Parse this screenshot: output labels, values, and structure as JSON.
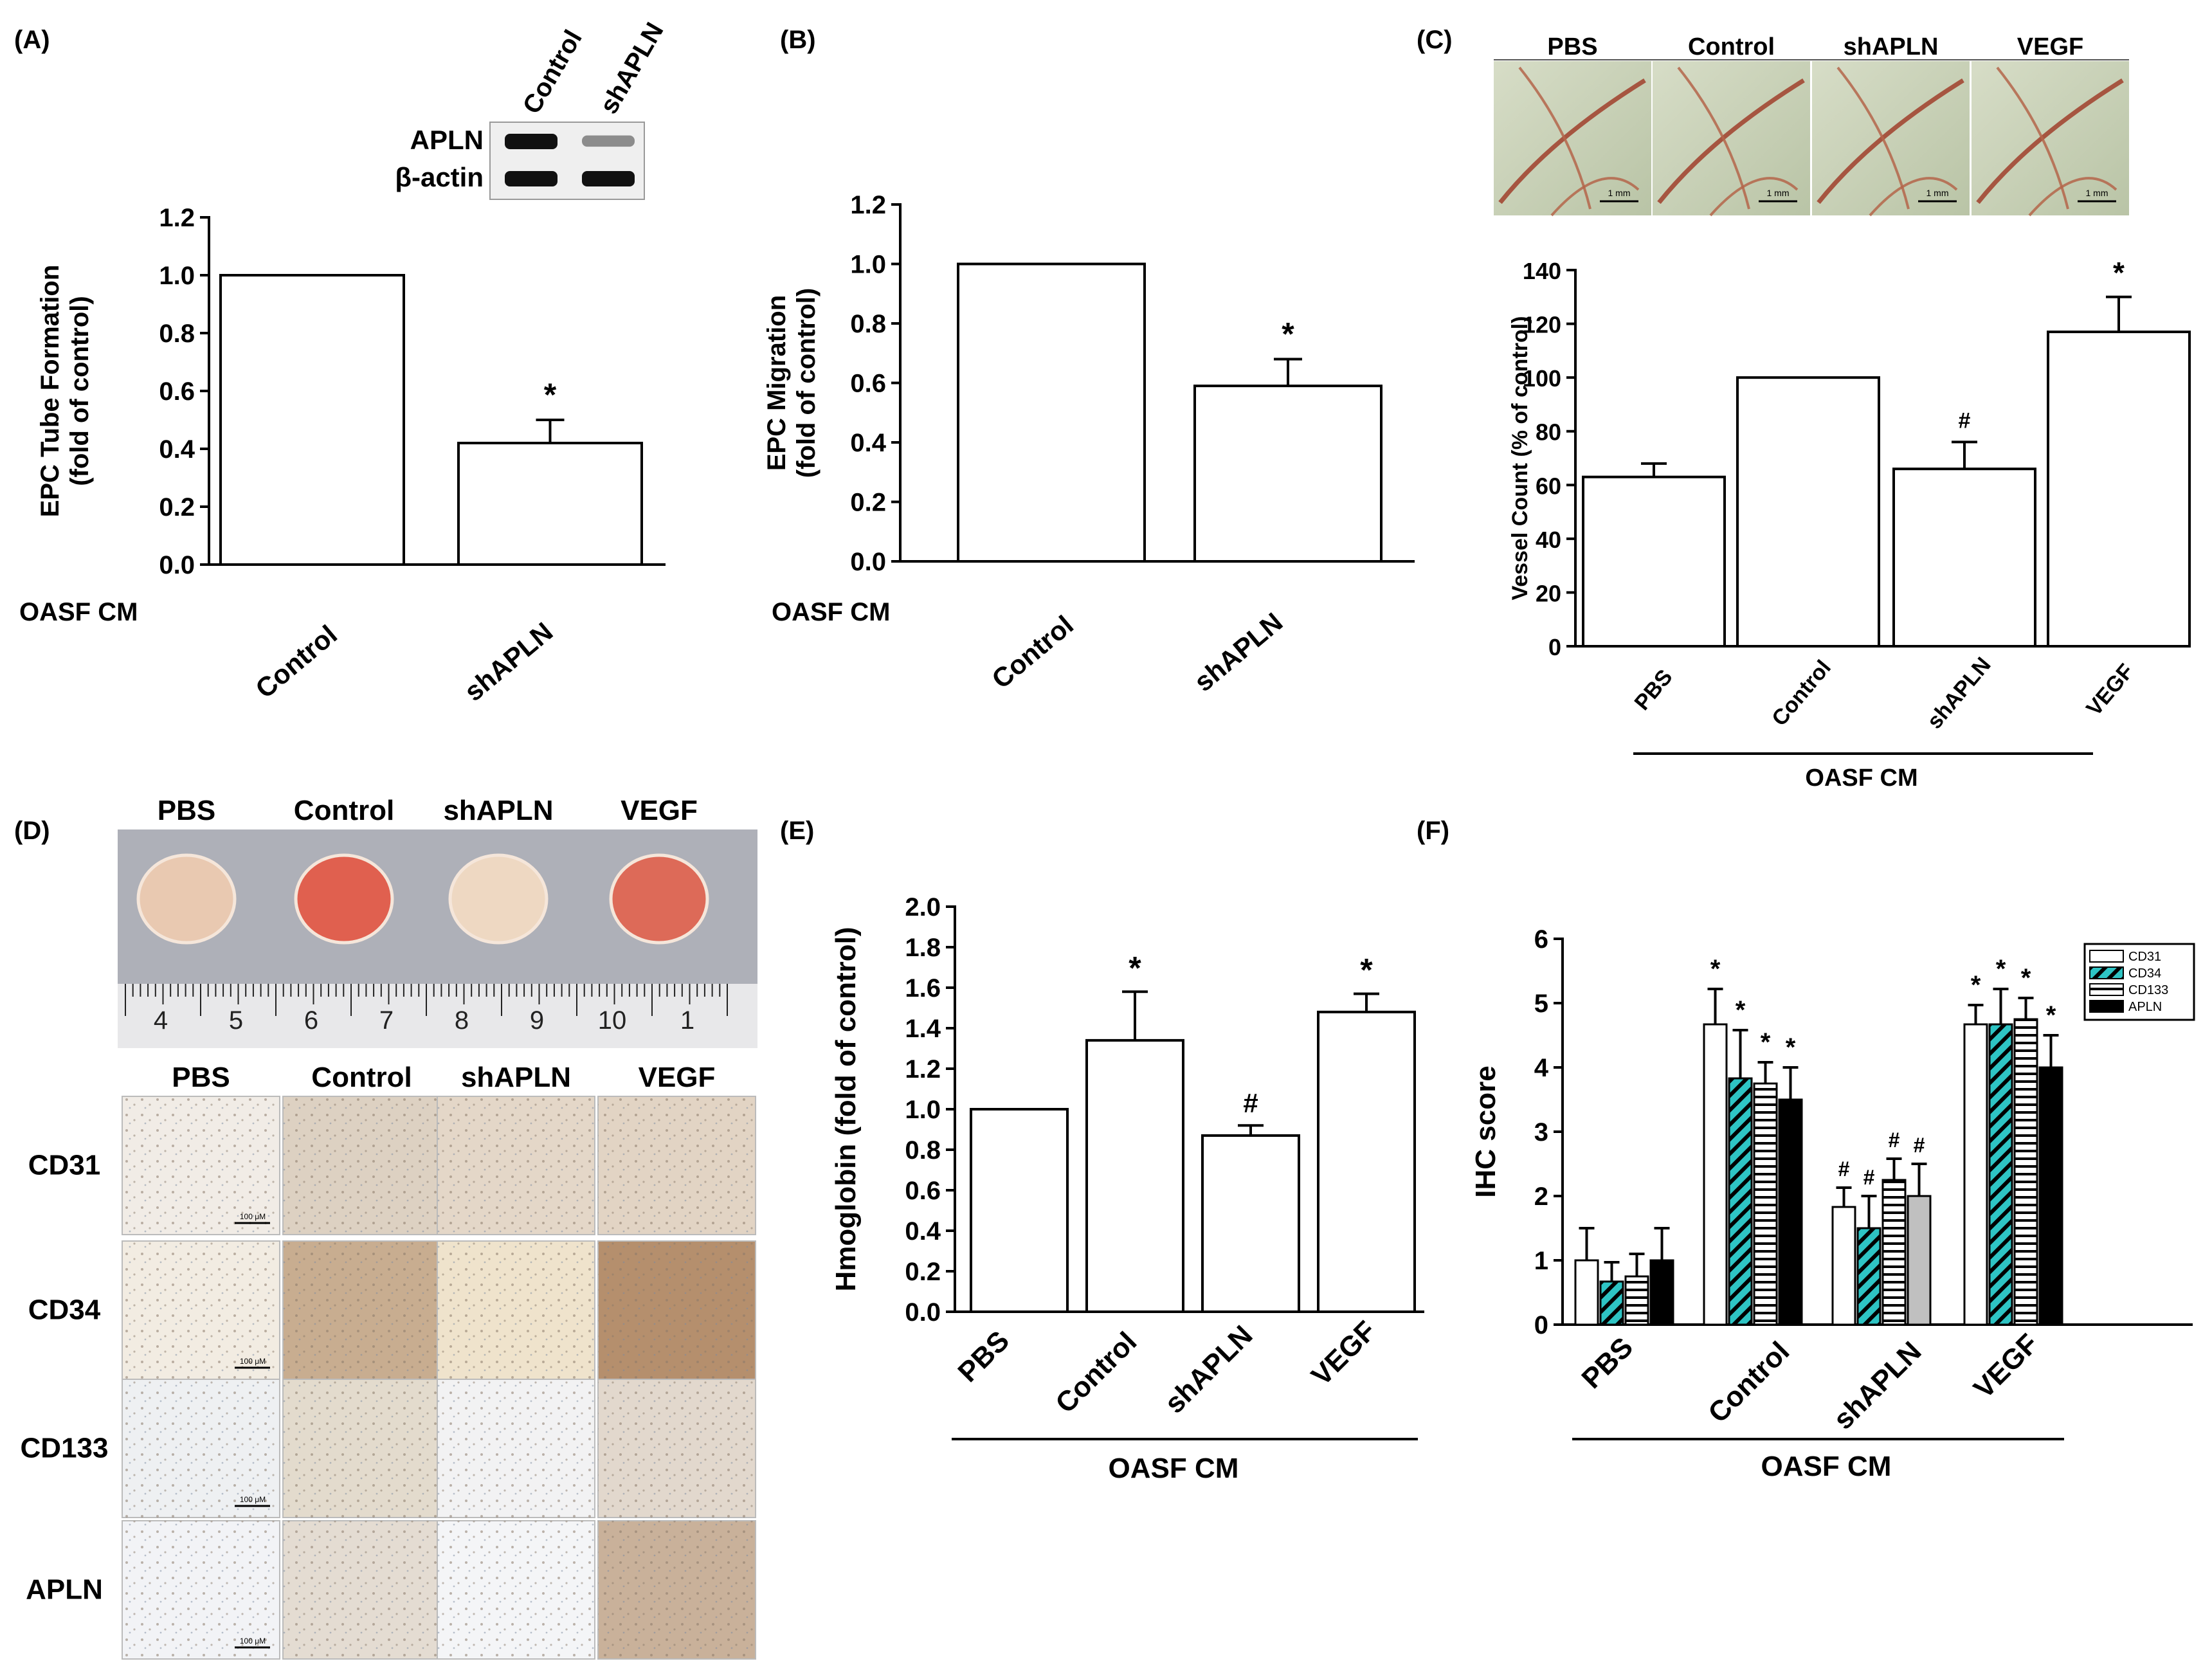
{
  "figure": {
    "panel_labels": [
      "(A)",
      "(B)",
      "(C)",
      "(D)",
      "(E)",
      "(F)"
    ],
    "treatment_label": "OASF CM",
    "western_blot": {
      "lanes": [
        "Control",
        "shAPLN"
      ],
      "rows": [
        "APLN",
        "β-actin"
      ],
      "band_intensity": [
        [
          1.0,
          0.35
        ],
        [
          1.0,
          1.0
        ]
      ]
    },
    "cam_assay": {
      "groups": [
        "PBS",
        "Control",
        "shAPLN",
        "VEGF"
      ],
      "scale_bar": "1 mm"
    },
    "matrigel_plugs": {
      "groups": [
        "PBS",
        "Control",
        "shAPLN",
        "VEGF"
      ],
      "plug_colors": [
        "#e9c9b1",
        "#e0604f",
        "#eed8c2",
        "#dd6a58"
      ],
      "ruler_numbers": [
        "4",
        "5",
        "6",
        "7",
        "8",
        "9",
        "10",
        "1"
      ]
    },
    "ihc_images": {
      "groups": [
        "PBS",
        "Control",
        "shAPLN",
        "VEGF"
      ],
      "rows": [
        "CD31",
        "CD34",
        "CD133",
        "APLN"
      ],
      "scale_bar": "100 μM"
    }
  },
  "chart_data": [
    {
      "id": "A",
      "type": "bar",
      "title": "",
      "xlabel": "OASF CM",
      "ylabel": "EPC Tube Formation (fold of control)",
      "categories": [
        "Control",
        "shAPLN"
      ],
      "values": [
        1.0,
        0.42
      ],
      "errors": [
        0,
        0.08
      ],
      "annotations": [
        "",
        "*"
      ],
      "ylim": [
        0,
        1.2
      ],
      "yticks": [
        "0.0",
        "0.2",
        "0.4",
        "0.6",
        "0.8",
        "1.0",
        "1.2"
      ]
    },
    {
      "id": "B",
      "type": "bar",
      "title": "",
      "xlabel": "OASF CM",
      "ylabel": "EPC Migration (fold of control)",
      "categories": [
        "Control",
        "shAPLN"
      ],
      "values": [
        1.0,
        0.59
      ],
      "errors": [
        0,
        0.09
      ],
      "annotations": [
        "",
        "*"
      ],
      "ylim": [
        0,
        1.2
      ],
      "yticks": [
        "0.0",
        "0.2",
        "0.4",
        "0.6",
        "0.8",
        "1.0",
        "1.2"
      ]
    },
    {
      "id": "C",
      "type": "bar",
      "title": "",
      "xlabel": "OASF CM",
      "ylabel": "Vessel Count (% of control)",
      "categories": [
        "PBS",
        "Control",
        "shAPLN",
        "VEGF"
      ],
      "values": [
        63,
        100,
        66,
        117
      ],
      "errors": [
        5,
        0,
        10,
        13
      ],
      "annotations": [
        "",
        "",
        "#",
        "*"
      ],
      "ylim": [
        0,
        140
      ],
      "yticks": [
        "0",
        "20",
        "40",
        "60",
        "80",
        "100",
        "120",
        "140"
      ]
    },
    {
      "id": "E",
      "type": "bar",
      "title": "",
      "xlabel": "OASF CM",
      "ylabel": "Hmoglobin (fold of control)",
      "categories": [
        "PBS",
        "Control",
        "shAPLN",
        "VEGF"
      ],
      "values": [
        1.0,
        1.34,
        0.87,
        1.48
      ],
      "errors": [
        0,
        0.24,
        0.05,
        0.09
      ],
      "annotations": [
        "",
        "*",
        "#",
        "*"
      ],
      "ylim": [
        0,
        2.0
      ],
      "yticks": [
        "0.0",
        "0.2",
        "0.4",
        "0.6",
        "0.8",
        "1.0",
        "1.2",
        "1.4",
        "1.6",
        "1.8",
        "2.0"
      ]
    },
    {
      "id": "F",
      "type": "bar",
      "title": "",
      "xlabel": "OASF CM",
      "ylabel": "IHC score",
      "categories": [
        "PBS",
        "Control",
        "shAPLN",
        "VEGF"
      ],
      "series": [
        {
          "name": "CD31",
          "values": [
            1.0,
            4.67,
            1.83,
            4.67
          ],
          "errors": [
            0.5,
            0.55,
            0.3,
            0.3
          ],
          "annotations": [
            "",
            "*",
            "#",
            "*"
          ]
        },
        {
          "name": "CD34",
          "values": [
            0.67,
            3.83,
            1.5,
            4.67
          ],
          "errors": [
            0.3,
            0.75,
            0.5,
            0.55
          ],
          "annotations": [
            "",
            "*",
            "#",
            "*"
          ]
        },
        {
          "name": "CD133",
          "values": [
            0.75,
            3.75,
            2.25,
            4.75
          ],
          "errors": [
            0.35,
            0.33,
            0.33,
            0.33
          ],
          "annotations": [
            "",
            "*",
            "#",
            "*"
          ]
        },
        {
          "name": "APLN",
          "values": [
            1.0,
            3.5,
            2.0,
            4.0
          ],
          "errors": [
            0.5,
            0.5,
            0.5,
            0.5
          ],
          "annotations": [
            "",
            "*",
            "#",
            "*"
          ]
        }
      ],
      "series_colors": [
        "#ffffff",
        "#2ec4c4",
        "#ffffff",
        "#000000"
      ],
      "ylim": [
        0,
        6
      ],
      "yticks": [
        "0",
        "1",
        "2",
        "3",
        "4",
        "5",
        "6"
      ],
      "legend": "top-right"
    }
  ]
}
